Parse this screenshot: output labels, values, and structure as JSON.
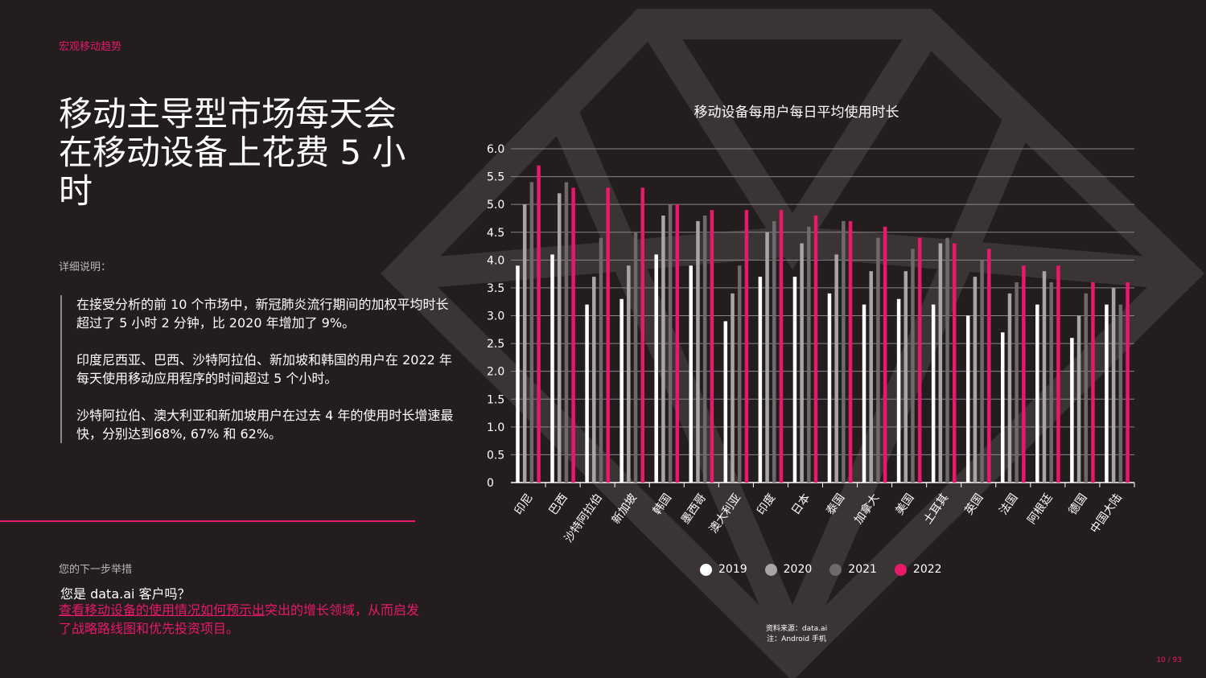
{
  "section_label": "宏观移动趋势",
  "title": "移动主导型市场每天会在移动设备上花费 5 小时",
  "detail_label": "详细说明：",
  "bullets": [
    "在接受分析的前 10 个市场中，新冠肺炎流行期间的加权平均时长超过了 5 小时 2 分钟，比 2020 年增加了 9%。",
    "印度尼西亚、巴西、沙特阿拉伯、新加坡和韩国的用户在 2022 年每天使用移动应用程序的时间超过 5 个小时。",
    "沙特阿拉伯、澳大利亚和新加坡用户在过去 4 年的使用时长增速最快，分别达到68%, 67% 和 62%。"
  ],
  "next_steps": {
    "label": "您的下一步举措",
    "question": "您是 data.ai 客户吗？",
    "link_text": "查看移动设备的使用情况如何预示出",
    "cta_rest": "突出的增长领域，从而启发了战略路线图和优先投资项目。"
  },
  "source": {
    "line1": "资料来源：data.ai",
    "line2": "注：Android 手机"
  },
  "page_number": "10 / 93",
  "colors": {
    "accent": "#e8196b",
    "s2019": "#ffffff",
    "s2020": "#a9a5a6",
    "s2021": "#6e6a6b",
    "s2022": "#e8196b"
  },
  "chart_data": {
    "type": "bar",
    "title": "移动设备每用户每日平均使用时长",
    "categories": [
      "印尼",
      "巴西",
      "沙特阿拉伯",
      "新加坡",
      "韩国",
      "墨西哥",
      "澳大利亚",
      "印度",
      "日本",
      "泰国",
      "加拿大",
      "美国",
      "土耳其",
      "英国",
      "法国",
      "阿根廷",
      "德国",
      "中国大陆"
    ],
    "series": [
      {
        "name": "2019",
        "values": [
          3.9,
          4.1,
          3.2,
          3.3,
          4.1,
          3.9,
          2.9,
          3.7,
          3.7,
          3.4,
          3.2,
          3.3,
          3.2,
          3.0,
          2.7,
          3.2,
          2.6,
          3.2
        ]
      },
      {
        "name": "2020",
        "values": [
          5.0,
          5.2,
          3.7,
          3.9,
          4.8,
          4.7,
          3.4,
          4.5,
          4.3,
          4.1,
          3.8,
          3.8,
          4.3,
          3.7,
          3.4,
          3.8,
          3.0,
          3.5
        ]
      },
      {
        "name": "2021",
        "values": [
          5.4,
          5.4,
          4.4,
          4.5,
          5.0,
          4.8,
          3.9,
          4.7,
          4.6,
          4.7,
          4.4,
          4.2,
          4.4,
          4.0,
          3.6,
          3.6,
          3.4,
          3.2
        ]
      },
      {
        "name": "2022",
        "values": [
          5.7,
          5.3,
          5.3,
          5.3,
          5.0,
          4.9,
          4.9,
          4.9,
          4.8,
          4.7,
          4.6,
          4.4,
          4.3,
          4.2,
          3.9,
          3.9,
          3.6,
          3.6
        ]
      }
    ],
    "ylim": [
      0,
      6.0
    ],
    "yticks": [
      "0",
      "0.5",
      "1.0",
      "1.5",
      "2.0",
      "2.5",
      "3.0",
      "3.5",
      "4.0",
      "4.5",
      "5.0",
      "5.5",
      "6.0"
    ],
    "grid": true,
    "legend_position": "bottom"
  }
}
